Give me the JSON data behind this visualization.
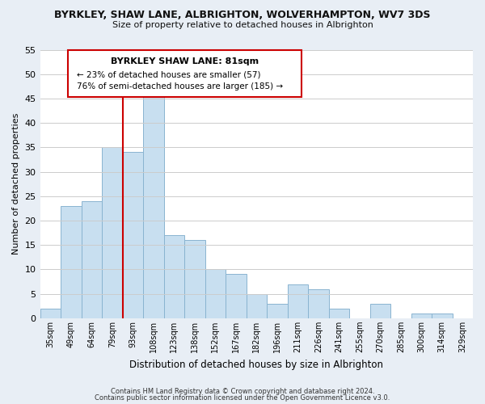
{
  "title": "BYRKLEY, SHAW LANE, ALBRIGHTON, WOLVERHAMPTON, WV7 3DS",
  "subtitle": "Size of property relative to detached houses in Albrighton",
  "xlabel": "Distribution of detached houses by size in Albrighton",
  "ylabel": "Number of detached properties",
  "bin_labels": [
    "35sqm",
    "49sqm",
    "64sqm",
    "79sqm",
    "93sqm",
    "108sqm",
    "123sqm",
    "138sqm",
    "152sqm",
    "167sqm",
    "182sqm",
    "196sqm",
    "211sqm",
    "226sqm",
    "241sqm",
    "255sqm",
    "270sqm",
    "285sqm",
    "300sqm",
    "314sqm",
    "329sqm"
  ],
  "bar_heights": [
    2,
    23,
    24,
    35,
    34,
    46,
    17,
    16,
    10,
    9,
    5,
    3,
    7,
    6,
    2,
    0,
    3,
    0,
    1,
    1,
    0
  ],
  "bar_color": "#c8dff0",
  "bar_edge_color": "#8ab4d0",
  "ylim": [
    0,
    55
  ],
  "yticks": [
    0,
    5,
    10,
    15,
    20,
    25,
    30,
    35,
    40,
    45,
    50,
    55
  ],
  "vline_x_idx": 3,
  "vline_color": "#cc0000",
  "annotation_title": "BYRKLEY SHAW LANE: 81sqm",
  "annotation_line1": "← 23% of detached houses are smaller (57)",
  "annotation_line2": "76% of semi-detached houses are larger (185) →",
  "annotation_box_color": "#ffffff",
  "annotation_box_edge": "#cc0000",
  "footer1": "Contains HM Land Registry data © Crown copyright and database right 2024.",
  "footer2": "Contains public sector information licensed under the Open Government Licence v3.0.",
  "background_color": "#e8eef5",
  "plot_bg_color": "#ffffff",
  "grid_color": "#cccccc"
}
